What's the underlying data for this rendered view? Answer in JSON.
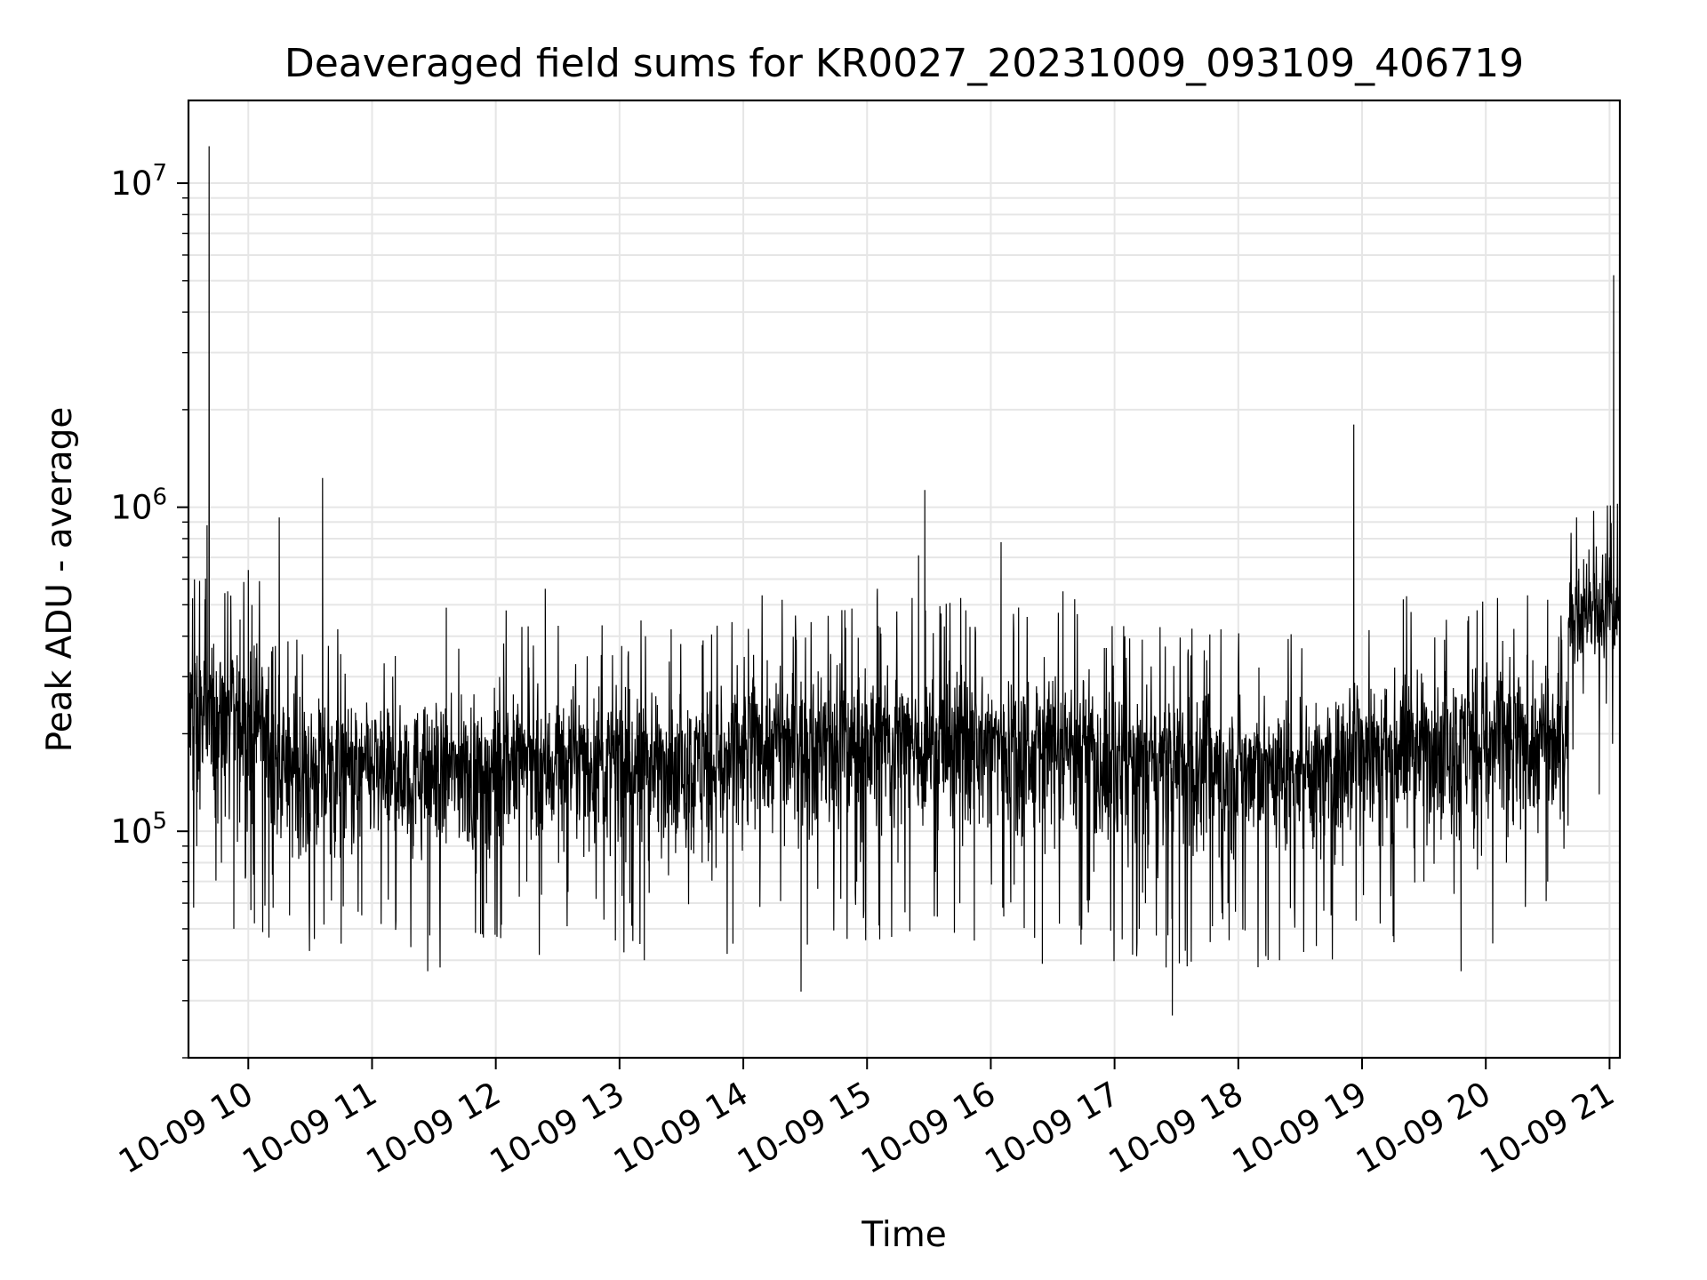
{
  "chart_data": {
    "type": "line",
    "title": "Deaveraged field sums for KR0027_20231009_093109_406719",
    "xlabel": "Time",
    "ylabel": "Peak ADU - average",
    "x_tick_labels": [
      "10-09 10",
      "10-09 11",
      "10-09 12",
      "10-09 13",
      "10-09 14",
      "10-09 15",
      "10-09 16",
      "10-09 17",
      "10-09 18",
      "10-09 19",
      "10-09 20",
      "10-09 21"
    ],
    "y_tick_labels": [
      {
        "base": "10",
        "exp": "5",
        "value": 100000
      },
      {
        "base": "10",
        "exp": "6",
        "value": 1000000
      },
      {
        "base": "10",
        "exp": "7",
        "value": 10000000
      }
    ],
    "x_range": [
      "2023-10-09 09:31",
      "2023-10-09 21:05"
    ],
    "y_range": [
      20000,
      18000000
    ],
    "y_scale": "log",
    "grid": true,
    "line_color": "#000000",
    "grid_color": "#e6e6e6",
    "series": [
      {
        "points": [
          [
            "2023-10-09 09:31",
            160000
          ],
          [
            "2023-10-09 09:33",
            380000
          ],
          [
            "2023-10-09 09:35",
            90000
          ],
          [
            "2023-10-09 09:37",
            300000
          ],
          [
            "2023-10-09 09:39",
            520000
          ],
          [
            "2023-10-09 09:40",
            880000
          ],
          [
            "2023-10-09 09:41",
            13000000
          ],
          [
            "2023-10-09 09:42",
            180000
          ],
          [
            "2023-10-09 09:45",
            260000
          ],
          [
            "2023-10-09 09:47",
            80000
          ],
          [
            "2023-10-09 09:50",
            550000
          ],
          [
            "2023-10-09 09:53",
            50000
          ],
          [
            "2023-10-09 09:56",
            450000
          ],
          [
            "2023-10-09 10:00",
            640000
          ],
          [
            "2023-10-09 10:03",
            52000
          ],
          [
            "2023-10-09 10:07",
            300000
          ],
          [
            "2023-10-09 10:10",
            47000
          ],
          [
            "2023-10-09 10:15",
            930000
          ],
          [
            "2023-10-09 10:20",
            55000
          ],
          [
            "2023-10-09 10:25",
            260000
          ],
          [
            "2023-10-09 10:30",
            100000
          ],
          [
            "2023-10-09 10:36",
            1230000
          ],
          [
            "2023-10-09 10:40",
            130000
          ],
          [
            "2023-10-09 10:45",
            45000
          ],
          [
            "2023-10-09 10:50",
            240000
          ],
          [
            "2023-10-09 10:55",
            55000
          ],
          [
            "2023-10-09 11:00",
            220000
          ],
          [
            "2023-10-09 11:10",
            300000
          ],
          [
            "2023-10-09 11:20",
            90000
          ],
          [
            "2023-10-09 11:27",
            37000
          ],
          [
            "2023-10-09 11:33",
            38000
          ],
          [
            "2023-10-09 11:36",
            490000
          ],
          [
            "2023-10-09 11:45",
            100000
          ],
          [
            "2023-10-09 11:54",
            47000
          ],
          [
            "2023-10-09 12:05",
            480000
          ],
          [
            "2023-10-09 12:15",
            70000
          ],
          [
            "2023-10-09 12:24",
            560000
          ],
          [
            "2023-10-09 12:35",
            65000
          ],
          [
            "2023-10-09 12:50",
            280000
          ],
          [
            "2023-10-09 13:05",
            60000
          ],
          [
            "2023-10-09 13:12",
            40000
          ],
          [
            "2023-10-09 13:25",
            420000
          ],
          [
            "2023-10-09 13:40",
            80000
          ],
          [
            "2023-10-09 13:55",
            45000
          ],
          [
            "2023-10-09 14:05",
            350000
          ],
          [
            "2023-10-09 14:20",
            90000
          ],
          [
            "2023-10-09 14:28",
            32000
          ],
          [
            "2023-10-09 14:40",
            250000
          ],
          [
            "2023-10-09 14:55",
            70000
          ],
          [
            "2023-10-09 15:05",
            560000
          ],
          [
            "2023-10-09 15:15",
            80000
          ],
          [
            "2023-10-09 15:25",
            710000
          ],
          [
            "2023-10-09 15:28",
            1130000
          ],
          [
            "2023-10-09 15:35",
            140000
          ],
          [
            "2023-10-09 15:45",
            60000
          ],
          [
            "2023-10-09 15:52",
            46000
          ],
          [
            "2023-10-09 16:05",
            780000
          ],
          [
            "2023-10-09 16:15",
            90000
          ],
          [
            "2023-10-09 16:25",
            39000
          ],
          [
            "2023-10-09 16:35",
            550000
          ],
          [
            "2023-10-09 16:50",
            75000
          ],
          [
            "2023-10-09 17:05",
            400000
          ],
          [
            "2023-10-09 17:15",
            60000
          ],
          [
            "2023-10-09 17:25",
            38000
          ],
          [
            "2023-10-09 17:28",
            27000
          ],
          [
            "2023-10-09 17:40",
            250000
          ],
          [
            "2023-10-09 17:55",
            60000
          ],
          [
            "2023-10-09 18:10",
            320000
          ],
          [
            "2023-10-09 18:20",
            40000
          ],
          [
            "2023-10-09 18:30",
            260000
          ],
          [
            "2023-10-09 18:45",
            55000
          ],
          [
            "2023-10-09 18:56",
            1800000
          ],
          [
            "2023-10-09 19:00",
            220000
          ],
          [
            "2023-10-09 19:10",
            90000
          ],
          [
            "2023-10-09 19:20",
            520000
          ],
          [
            "2023-10-09 19:30",
            70000
          ],
          [
            "2023-10-09 19:40",
            390000
          ],
          [
            "2023-10-09 19:48",
            37000
          ],
          [
            "2023-10-09 20:00",
            300000
          ],
          [
            "2023-10-09 20:10",
            80000
          ],
          [
            "2023-10-09 20:20",
            350000
          ],
          [
            "2023-10-09 20:30",
            70000
          ],
          [
            "2023-10-09 20:40",
            200000
          ],
          [
            "2023-10-09 20:45",
            500000
          ],
          [
            "2023-10-09 20:50",
            740000
          ],
          [
            "2023-10-09 20:55",
            130000
          ],
          [
            "2023-10-09 21:00",
            700000
          ],
          [
            "2023-10-09 21:02",
            5200000
          ],
          [
            "2023-10-09 21:05",
            600000
          ]
        ],
        "baseline_segments": [
          {
            "from": "2023-10-09 09:31",
            "to": "2023-10-09 10:10",
            "typical": 220000,
            "low": 75000,
            "high": 480000
          },
          {
            "from": "2023-10-09 10:10",
            "to": "2023-10-09 12:00",
            "typical": 155000,
            "low": 65000,
            "high": 300000
          },
          {
            "from": "2023-10-09 12:00",
            "to": "2023-10-09 14:00",
            "typical": 165000,
            "low": 65000,
            "high": 320000
          },
          {
            "from": "2023-10-09 14:00",
            "to": "2023-10-09 16:50",
            "typical": 190000,
            "low": 70000,
            "high": 380000
          },
          {
            "from": "2023-10-09 16:50",
            "to": "2023-10-09 18:50",
            "typical": 160000,
            "low": 60000,
            "high": 320000
          },
          {
            "from": "2023-10-09 18:50",
            "to": "2023-10-09 20:40",
            "typical": 190000,
            "low": 70000,
            "high": 380000
          },
          {
            "from": "2023-10-09 20:40",
            "to": "2023-10-09 21:05",
            "typical": 480000,
            "low": 280000,
            "high": 800000
          }
        ]
      }
    ]
  }
}
